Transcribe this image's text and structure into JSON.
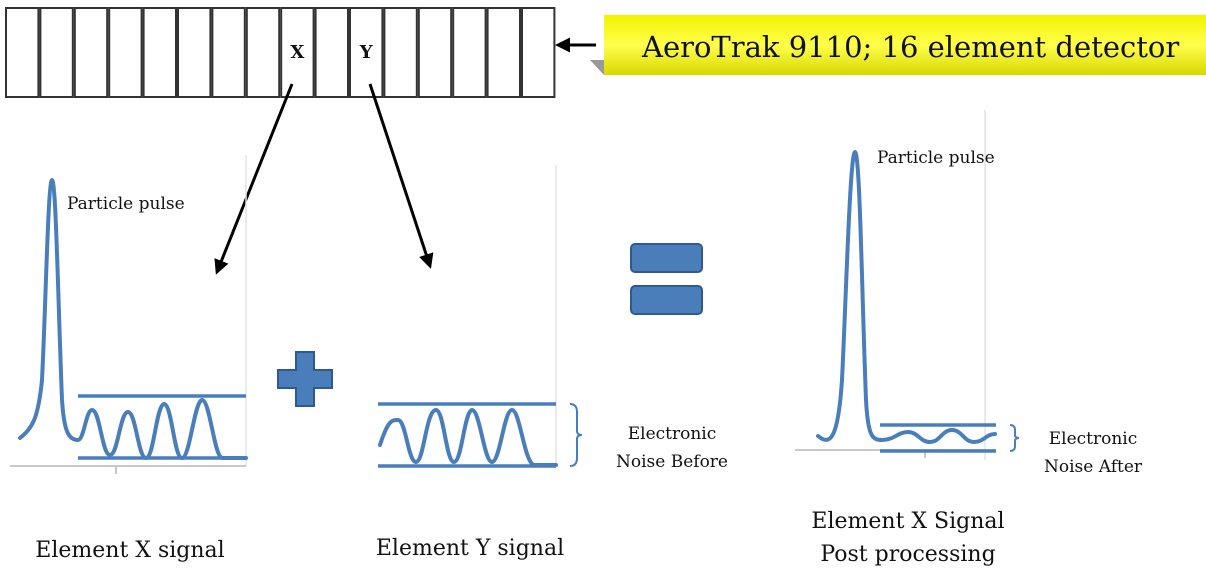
{
  "header": {
    "title": "AeroTrak 9110; 16 element detector"
  },
  "detector": {
    "elements": [
      "X",
      "Y"
    ]
  },
  "panels": [
    {
      "annotation": "Particle pulse",
      "caption": [
        "Element X signal"
      ]
    },
    {
      "noise_label": [
        "Electronic",
        "Noise Before"
      ],
      "caption": [
        "Element Y signal"
      ]
    },
    {
      "annotation": "Particle pulse",
      "noise_label": [
        "Electronic",
        "Noise After"
      ],
      "caption": [
        "Element X Signal",
        "Post processing"
      ]
    }
  ]
}
